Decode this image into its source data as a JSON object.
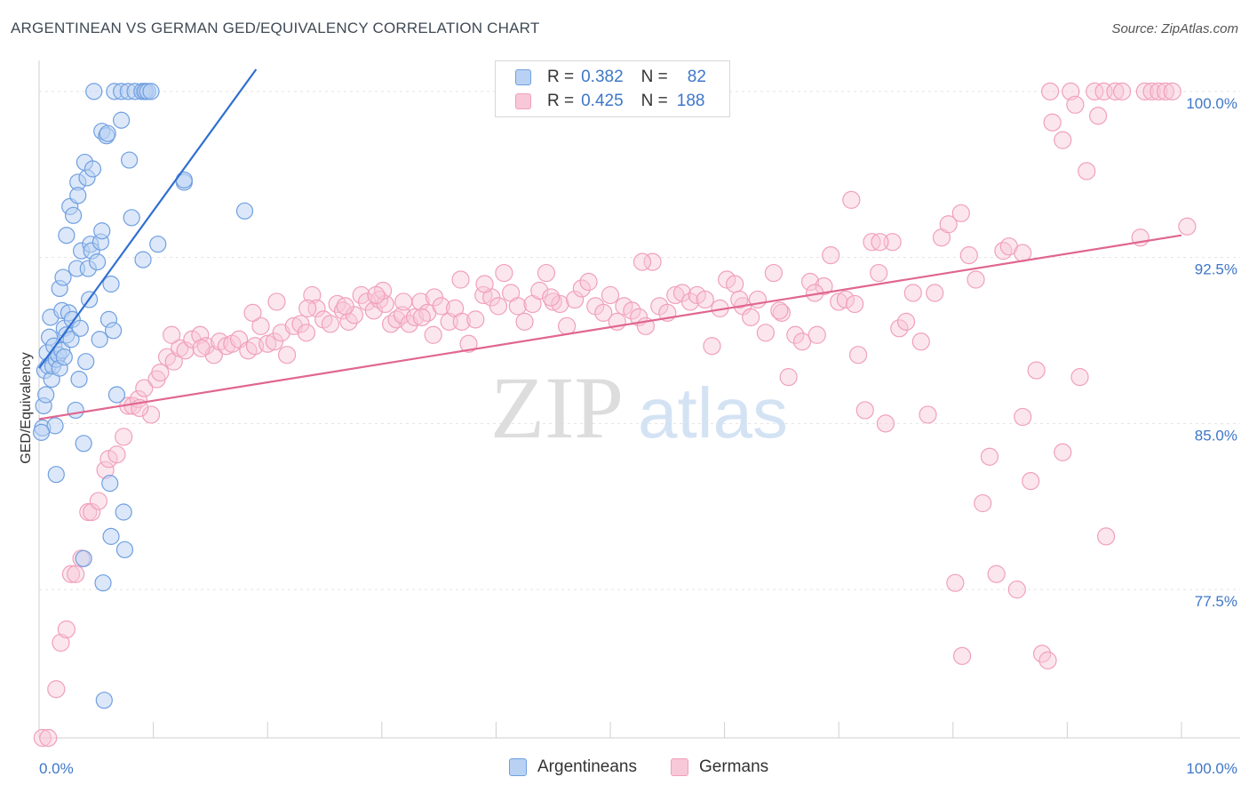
{
  "title": "ARGENTINEAN VS GERMAN GED/EQUIVALENCY CORRELATION CHART",
  "source": "Source: ZipAtlas.com",
  "watermark": {
    "zip": "ZIP",
    "atlas": "atlas"
  },
  "colors": {
    "argentinean": "#6f9fe0",
    "argentinean_fill": "#b9d2f3",
    "argentinean_line": "#2f6fd0",
    "german": "#f0a0bc",
    "german_fill": "#f8c8d8",
    "german_line": "#e06690",
    "tick_text": "#3e77c8"
  },
  "legend_top": {
    "rows": [
      {
        "r_label": "R =",
        "r_value": "0.382",
        "n_label": "N =",
        "n_value": "82"
      },
      {
        "r_label": "R =",
        "r_value": "0.425",
        "n_label": "N =",
        "n_value": "188"
      }
    ]
  },
  "legend_bottom": {
    "argentineans": "Argentineans",
    "germans": "Germans"
  },
  "chart_data": {
    "type": "scatter",
    "title": "ARGENTINEAN VS GERMAN GED/EQUIVALENCY CORRELATION CHART",
    "xlabel": "",
    "ylabel": "GED/Equivalency",
    "xlim": [
      0,
      100
    ],
    "ylim": [
      70.8,
      101.4
    ],
    "x_tick_labels": [
      "0.0%",
      "100.0%"
    ],
    "y_ticks": [
      77.5,
      85.0,
      92.5,
      100.0
    ],
    "y_tick_labels": [
      "77.5%",
      "85.0%",
      "92.5%",
      "100.0%"
    ],
    "grid": true,
    "legend": "top-center",
    "series": [
      {
        "name": "Argentineans",
        "r": 0.382,
        "n": 82,
        "trendline": {
          "x": [
            0,
            19
          ],
          "y": [
            87.5,
            101.0
          ]
        },
        "points": [
          [
            0.3,
            84.8
          ],
          [
            0.4,
            85.8
          ],
          [
            0.5,
            87.4
          ],
          [
            0.6,
            86.3
          ],
          [
            0.7,
            88.2
          ],
          [
            0.8,
            87.6
          ],
          [
            0.9,
            88.9
          ],
          [
            1.0,
            89.8
          ],
          [
            1.1,
            87.0
          ],
          [
            1.2,
            87.6
          ],
          [
            1.3,
            88.5
          ],
          [
            1.4,
            84.9
          ],
          [
            1.5,
            87.9
          ],
          [
            1.5,
            82.7
          ],
          [
            1.7,
            88.1
          ],
          [
            1.8,
            87.5
          ],
          [
            1.8,
            91.1
          ],
          [
            2.0,
            90.1
          ],
          [
            2.0,
            88.3
          ],
          [
            2.1,
            91.6
          ],
          [
            2.2,
            89.3
          ],
          [
            2.2,
            88.0
          ],
          [
            2.4,
            89.0
          ],
          [
            2.4,
            93.5
          ],
          [
            2.6,
            90.0
          ],
          [
            2.7,
            94.8
          ],
          [
            2.8,
            88.8
          ],
          [
            2.9,
            89.7
          ],
          [
            3.0,
            94.4
          ],
          [
            3.2,
            85.6
          ],
          [
            3.3,
            92.0
          ],
          [
            3.4,
            95.9
          ],
          [
            3.4,
            95.3
          ],
          [
            3.5,
            87.0
          ],
          [
            3.6,
            89.3
          ],
          [
            3.7,
            92.8
          ],
          [
            3.9,
            78.9
          ],
          [
            3.9,
            84.1
          ],
          [
            4.0,
            96.8
          ],
          [
            4.1,
            87.8
          ],
          [
            4.2,
            96.1
          ],
          [
            4.3,
            92.0
          ],
          [
            4.4,
            90.6
          ],
          [
            4.5,
            93.1
          ],
          [
            4.6,
            92.8
          ],
          [
            4.7,
            96.5
          ],
          [
            4.8,
            100.0
          ],
          [
            5.1,
            92.3
          ],
          [
            5.3,
            88.8
          ],
          [
            5.4,
            93.2
          ],
          [
            5.5,
            93.7
          ],
          [
            5.5,
            98.2
          ],
          [
            5.6,
            77.8
          ],
          [
            5.7,
            72.5
          ],
          [
            5.9,
            98.0
          ],
          [
            6.0,
            98.1
          ],
          [
            6.1,
            89.7
          ],
          [
            6.2,
            82.3
          ],
          [
            6.3,
            91.3
          ],
          [
            6.3,
            79.9
          ],
          [
            6.5,
            89.2
          ],
          [
            6.6,
            100.0
          ],
          [
            6.8,
            86.3
          ],
          [
            7.2,
            100.0
          ],
          [
            7.2,
            98.7
          ],
          [
            7.5,
            79.3
          ],
          [
            7.8,
            100.0
          ],
          [
            7.9,
            96.9
          ],
          [
            7.4,
            81.0
          ],
          [
            8.1,
            94.3
          ],
          [
            8.4,
            100.0
          ],
          [
            9.2,
            100.0
          ],
          [
            9.0,
            100.0
          ],
          [
            9.3,
            100.0
          ],
          [
            9.5,
            100.0
          ],
          [
            9.8,
            100.0
          ],
          [
            9.1,
            92.4
          ],
          [
            10.4,
            93.1
          ],
          [
            12.7,
            95.9
          ],
          [
            12.7,
            96.0
          ],
          [
            18.0,
            94.6
          ],
          [
            0.2,
            84.6
          ]
        ]
      },
      {
        "name": "Germans",
        "r": 0.425,
        "n": 188,
        "trendline": {
          "x": [
            0,
            100
          ],
          "y": [
            85.2,
            93.5
          ]
        },
        "points": [
          [
            0.3,
            70.8
          ],
          [
            0.8,
            70.8
          ],
          [
            1.5,
            73.0
          ],
          [
            1.9,
            75.1
          ],
          [
            2.4,
            75.7
          ],
          [
            2.8,
            78.2
          ],
          [
            3.2,
            78.2
          ],
          [
            3.7,
            78.9
          ],
          [
            4.3,
            81.0
          ],
          [
            4.6,
            81.0
          ],
          [
            5.2,
            81.5
          ],
          [
            5.8,
            82.9
          ],
          [
            6.1,
            83.4
          ],
          [
            6.8,
            83.6
          ],
          [
            7.4,
            84.4
          ],
          [
            7.8,
            85.8
          ],
          [
            8.2,
            85.8
          ],
          [
            8.7,
            86.1
          ],
          [
            9.2,
            86.6
          ],
          [
            9.8,
            85.4
          ],
          [
            10.3,
            87.0
          ],
          [
            10.6,
            87.3
          ],
          [
            11.2,
            88.0
          ],
          [
            11.8,
            87.8
          ],
          [
            12.3,
            88.4
          ],
          [
            12.8,
            88.3
          ],
          [
            13.4,
            88.8
          ],
          [
            14.1,
            89.0
          ],
          [
            14.6,
            88.5
          ],
          [
            15.3,
            88.1
          ],
          [
            15.8,
            88.7
          ],
          [
            16.4,
            88.5
          ],
          [
            16.9,
            88.6
          ],
          [
            17.5,
            88.8
          ],
          [
            18.3,
            88.3
          ],
          [
            18.9,
            88.5
          ],
          [
            19.4,
            89.4
          ],
          [
            20.0,
            88.6
          ],
          [
            20.6,
            88.7
          ],
          [
            21.2,
            89.1
          ],
          [
            21.7,
            88.1
          ],
          [
            22.3,
            89.4
          ],
          [
            22.9,
            89.5
          ],
          [
            23.4,
            89.1
          ],
          [
            23.9,
            90.8
          ],
          [
            24.3,
            90.2
          ],
          [
            24.9,
            89.7
          ],
          [
            25.5,
            89.5
          ],
          [
            26.1,
            90.4
          ],
          [
            26.6,
            90.1
          ],
          [
            27.1,
            89.6
          ],
          [
            27.6,
            89.9
          ],
          [
            28.2,
            90.8
          ],
          [
            28.7,
            90.5
          ],
          [
            29.3,
            90.1
          ],
          [
            29.8,
            90.6
          ],
          [
            30.3,
            90.4
          ],
          [
            30.8,
            89.5
          ],
          [
            31.3,
            89.7
          ],
          [
            31.8,
            89.9
          ],
          [
            32.4,
            89.5
          ],
          [
            32.9,
            89.8
          ],
          [
            33.4,
            90.5
          ],
          [
            34.0,
            90.0
          ],
          [
            34.6,
            90.7
          ],
          [
            35.2,
            90.3
          ],
          [
            35.9,
            89.6
          ],
          [
            36.4,
            90.2
          ],
          [
            37.0,
            89.6
          ],
          [
            37.6,
            88.6
          ],
          [
            38.2,
            89.7
          ],
          [
            38.9,
            90.8
          ],
          [
            39.6,
            90.7
          ],
          [
            40.2,
            90.3
          ],
          [
            40.7,
            91.8
          ],
          [
            41.3,
            90.9
          ],
          [
            41.9,
            90.3
          ],
          [
            42.5,
            89.6
          ],
          [
            43.2,
            90.4
          ],
          [
            43.8,
            91.0
          ],
          [
            44.4,
            91.8
          ],
          [
            45.0,
            90.5
          ],
          [
            45.6,
            90.4
          ],
          [
            46.2,
            89.4
          ],
          [
            46.9,
            90.6
          ],
          [
            47.5,
            91.1
          ],
          [
            48.1,
            91.4
          ],
          [
            48.7,
            90.3
          ],
          [
            49.4,
            90.0
          ],
          [
            50.0,
            90.8
          ],
          [
            50.6,
            89.6
          ],
          [
            51.2,
            90.3
          ],
          [
            51.9,
            90.1
          ],
          [
            52.5,
            89.8
          ],
          [
            53.1,
            89.4
          ],
          [
            53.7,
            92.3
          ],
          [
            54.3,
            90.3
          ],
          [
            55.0,
            90.0
          ],
          [
            55.7,
            90.8
          ],
          [
            56.3,
            90.9
          ],
          [
            57.0,
            90.5
          ],
          [
            57.6,
            90.8
          ],
          [
            58.3,
            90.6
          ],
          [
            58.9,
            88.5
          ],
          [
            59.6,
            90.2
          ],
          [
            60.2,
            91.5
          ],
          [
            60.9,
            91.3
          ],
          [
            61.6,
            90.3
          ],
          [
            62.3,
            89.8
          ],
          [
            62.9,
            90.6
          ],
          [
            63.6,
            89.1
          ],
          [
            64.3,
            91.8
          ],
          [
            65.0,
            90.0
          ],
          [
            65.6,
            87.1
          ],
          [
            66.2,
            89.0
          ],
          [
            66.8,
            88.7
          ],
          [
            67.5,
            91.4
          ],
          [
            68.1,
            89.0
          ],
          [
            68.7,
            91.2
          ],
          [
            69.3,
            92.6
          ],
          [
            70.0,
            90.5
          ],
          [
            70.6,
            90.6
          ],
          [
            71.1,
            95.1
          ],
          [
            71.7,
            88.1
          ],
          [
            72.3,
            85.6
          ],
          [
            72.9,
            93.2
          ],
          [
            73.5,
            91.8
          ],
          [
            74.1,
            85.0
          ],
          [
            74.7,
            93.2
          ],
          [
            75.3,
            89.3
          ],
          [
            75.9,
            89.6
          ],
          [
            76.5,
            90.9
          ],
          [
            77.2,
            88.7
          ],
          [
            77.8,
            85.4
          ],
          [
            78.4,
            90.9
          ],
          [
            79.0,
            93.4
          ],
          [
            79.6,
            94.0
          ],
          [
            80.2,
            77.8
          ],
          [
            80.8,
            74.5
          ],
          [
            81.4,
            92.6
          ],
          [
            82.0,
            91.5
          ],
          [
            82.6,
            81.4
          ],
          [
            83.2,
            83.5
          ],
          [
            83.8,
            78.2
          ],
          [
            84.4,
            92.8
          ],
          [
            84.9,
            93.0
          ],
          [
            85.6,
            77.5
          ],
          [
            86.1,
            85.3
          ],
          [
            86.8,
            82.4
          ],
          [
            87.3,
            87.4
          ],
          [
            87.8,
            74.6
          ],
          [
            88.3,
            74.3
          ],
          [
            88.5,
            100.0
          ],
          [
            88.7,
            98.6
          ],
          [
            89.6,
            83.7
          ],
          [
            89.6,
            97.8
          ],
          [
            90.3,
            100.0
          ],
          [
            90.7,
            99.4
          ],
          [
            91.1,
            87.1
          ],
          [
            91.7,
            96.4
          ],
          [
            92.4,
            100.0
          ],
          [
            92.7,
            98.9
          ],
          [
            93.2,
            100.0
          ],
          [
            93.4,
            79.9
          ],
          [
            94.2,
            100.0
          ],
          [
            94.8,
            100.0
          ],
          [
            96.4,
            93.4
          ],
          [
            96.8,
            100.0
          ],
          [
            97.4,
            100.0
          ],
          [
            98.0,
            100.0
          ],
          [
            98.6,
            100.0
          ],
          [
            99.2,
            100.0
          ],
          [
            100.5,
            93.9
          ],
          [
            30.1,
            91.0
          ],
          [
            34.5,
            89.0
          ],
          [
            36.9,
            91.5
          ],
          [
            39.0,
            91.3
          ],
          [
            44.8,
            90.7
          ],
          [
            52.8,
            92.3
          ],
          [
            61.3,
            90.6
          ],
          [
            64.8,
            90.1
          ],
          [
            67.9,
            90.9
          ],
          [
            71.4,
            90.4
          ],
          [
            73.6,
            93.2
          ],
          [
            80.7,
            94.5
          ],
          [
            86.1,
            92.7
          ],
          [
            8.8,
            85.7
          ],
          [
            11.6,
            89.0
          ],
          [
            14.2,
            88.4
          ],
          [
            18.7,
            90.0
          ],
          [
            20.8,
            90.5
          ],
          [
            23.5,
            90.2
          ],
          [
            26.8,
            90.3
          ],
          [
            29.5,
            90.8
          ],
          [
            31.9,
            90.5
          ],
          [
            33.5,
            89.8
          ]
        ]
      }
    ]
  }
}
